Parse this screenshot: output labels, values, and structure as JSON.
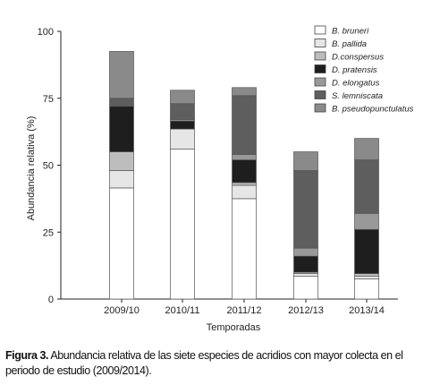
{
  "chart_data": {
    "type": "bar",
    "stacked": true,
    "xlabel": "Temporadas",
    "ylabel": "Abundancia relativa (%)",
    "ylim": [
      0,
      100
    ],
    "yticks": [
      0,
      25,
      50,
      75,
      100
    ],
    "grid": false,
    "legend_position": "top-right",
    "categories": [
      "2009/10",
      "2010/11",
      "2011/12",
      "2012/13",
      "2013/14"
    ],
    "series": [
      {
        "name": "B. bruneri",
        "color": "#ffffff",
        "values": [
          41.5,
          56,
          37.5,
          8.5,
          7.5
        ]
      },
      {
        "name": "B. pallida",
        "color": "#e6e6e6",
        "values": [
          6.5,
          7.5,
          5,
          1,
          1
        ]
      },
      {
        "name": "D.conspersus",
        "color": "#bdbdbd",
        "values": [
          7,
          0,
          1,
          0.5,
          1
        ]
      },
      {
        "name": "D. pratensis",
        "color": "#1e1e1e",
        "values": [
          17,
          3,
          8.5,
          6,
          16.5
        ]
      },
      {
        "name": "D. elongatus",
        "color": "#999999",
        "values": [
          0,
          0.5,
          2,
          3,
          6
        ]
      },
      {
        "name": "S. lemniscata",
        "color": "#5e5e5e",
        "values": [
          3,
          6,
          22,
          29,
          20
        ]
      },
      {
        "name": "B. pseudopunctulatus",
        "color": "#8a8a8a",
        "values": [
          17.5,
          5,
          3,
          7,
          8
        ]
      }
    ]
  },
  "caption": {
    "label": "Figura 3.",
    "text": " Abundancia relativa de las siete especies  de acridios con mayor colecta en el periodo de estudio (2009/2014)."
  }
}
